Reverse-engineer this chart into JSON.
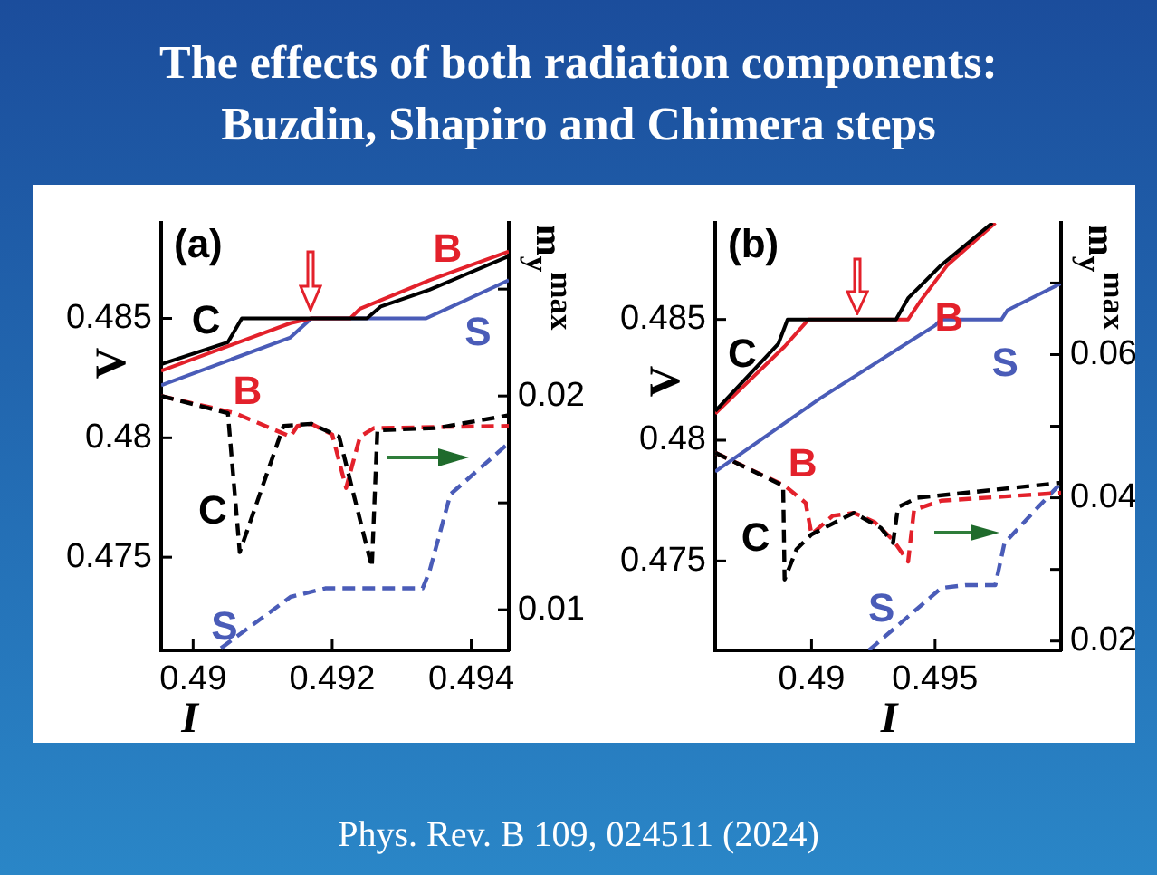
{
  "chart_data": [
    {
      "type": "line",
      "title": "The effects of both radiation components: Buzdin, Shapiro and Chimera steps",
      "xlabel": "I",
      "ylabel": "V",
      "y2label": "m$_{y}$$^{max}$",
      "annotations": [
        "(a)",
        "Phys. Rev. B 109, 024511 (2024)"
      ],
      "xlim": [
        0.48954,
        0.49454
      ],
      "ylim": [
        0.4711,
        0.489
      ],
      "y2lim": [
        0.0081,
        0.0281
      ],
      "xticks": [
        0.49,
        0.492,
        0.494
      ],
      "yticks": [
        0.475,
        0.48,
        0.485
      ],
      "y2ticks": [
        0.01,
        {
          "value": 0.015,
          "label": null
        },
        0.02,
        {
          "value": 0.025,
          "label": null
        }
      ],
      "grid": false,
      "legend": false,
      "marker": "none",
      "line_style": "solid",
      "series": [
        {
          "name": "C",
          "color": "#000000",
          "x": [
            0.48954,
            0.4905,
            0.4907,
            0.4925,
            0.4927,
            0.4934,
            0.49454
          ],
          "values": [
            0.48308,
            0.484,
            0.485,
            0.485,
            0.4855,
            0.4862,
            0.4876
          ]
        },
        {
          "name": "B",
          "color": "#e3212b",
          "x": [
            0.48954,
            0.4914,
            0.4917,
            0.49226,
            0.4924,
            0.4934,
            0.49454
          ],
          "values": [
            0.4828,
            0.4848,
            0.485,
            0.485,
            0.4854,
            0.4866,
            0.4878
          ]
        },
        {
          "name": "S",
          "color": "#4a5cb8",
          "x": [
            0.48954,
            0.4914,
            0.4917,
            0.49335,
            0.4938,
            0.49454
          ],
          "values": [
            0.4822,
            0.4842,
            0.485,
            0.485,
            0.4856,
            0.4866
          ]
        },
        {
          "name": "C",
          "color": "#000000",
          "axis": "y2",
          "line_style": "dashed",
          "x": [
            0.48954,
            0.4905,
            0.49067,
            0.4913,
            0.4917,
            0.4921,
            0.49257,
            0.49265,
            0.4935,
            0.49454
          ],
          "values": [
            0.02,
            0.0192,
            0.0127,
            0.0186,
            0.0187,
            0.0181,
            0.012,
            0.0184,
            0.0185,
            0.0191
          ]
        },
        {
          "name": "B",
          "color": "#e3212b",
          "axis": "y2",
          "line_style": "dashed",
          "x": [
            0.48954,
            0.4906,
            0.4914,
            0.4915,
            0.4917,
            0.492,
            0.4922,
            0.4924,
            0.4926,
            0.49454
          ],
          "values": [
            0.02,
            0.0192,
            0.0181,
            0.0186,
            0.0187,
            0.0182,
            0.0157,
            0.0181,
            0.0185,
            0.0186
          ]
        },
        {
          "name": "S",
          "color": "#4a5cb8",
          "axis": "y2",
          "line_style": "dashed",
          "x": [
            0.4904,
            0.4914,
            0.4919,
            0.4933,
            0.4934,
            0.4937,
            0.49454
          ],
          "values": [
            0.0082,
            0.0106,
            0.011,
            0.011,
            0.0118,
            0.0154,
            0.0178
          ]
        }
      ]
    },
    {
      "type": "line",
      "xlabel": "I",
      "ylabel": "V",
      "y2label": "m$_{y}$$^{max}$",
      "annotations": [
        "(b)"
      ],
      "xlim": [
        0.4861,
        0.5001
      ],
      "ylim": [
        0.4713,
        0.489
      ],
      "y2lim": [
        0.0187,
        0.0784
      ],
      "xticks": [
        0.49,
        0.495
      ],
      "yticks": [
        0.475,
        0.48,
        0.485
      ],
      "y2ticks": [
        0.02,
        {
          "value": 0.03,
          "label": null
        },
        0.04,
        {
          "value": 0.05,
          "label": null
        },
        0.06,
        {
          "value": 0.07,
          "label": null
        }
      ],
      "grid": false,
      "legend": false,
      "marker": "none",
      "line_style": "solid",
      "series": [
        {
          "name": "C",
          "color": "#000000",
          "x": [
            0.4861,
            0.48866,
            0.48903,
            0.48988,
            0.49342,
            0.49391,
            0.49525,
            0.49732
          ],
          "values": [
            0.4812,
            0.484,
            0.485,
            0.485,
            0.485,
            0.48588,
            0.48725,
            0.489
          ]
        },
        {
          "name": "B",
          "color": "#e3212b",
          "x": [
            0.4861,
            0.48891,
            0.48988,
            0.49391,
            0.4944,
            0.4955,
            0.49744
          ],
          "values": [
            0.4811,
            0.48388,
            0.485,
            0.485,
            0.48575,
            0.48725,
            0.489
          ]
        },
        {
          "name": "S",
          "color": "#4a5cb8",
          "x": [
            0.4861,
            0.49037,
            0.495,
            0.49525,
            0.49769,
            0.49793,
            0.5001
          ],
          "values": [
            0.4787,
            0.48175,
            0.48475,
            0.485,
            0.485,
            0.48538,
            0.4865
          ]
        },
        {
          "name": "C",
          "color": "#000000",
          "axis": "y2",
          "line_style": "dashed",
          "x": [
            0.4861,
            0.48885,
            0.48891,
            0.48939,
            0.49,
            0.49171,
            0.49281,
            0.4933,
            0.4935,
            0.49427,
            0.5001
          ],
          "values": [
            0.0463,
            0.0417,
            0.0286,
            0.0328,
            0.0349,
            0.0379,
            0.0358,
            0.0337,
            0.0387,
            0.04,
            0.0421
          ]
        },
        {
          "name": "B",
          "color": "#e3212b",
          "axis": "y2",
          "line_style": "dashed",
          "x": [
            0.4861,
            0.48891,
            0.48976,
            0.48988,
            0.49,
            0.49086,
            0.49171,
            0.49256,
            0.4933,
            0.49391,
            0.49415,
            0.49525,
            0.5001
          ],
          "values": [
            0.0463,
            0.0417,
            0.0393,
            0.0371,
            0.0349,
            0.0375,
            0.0379,
            0.0366,
            0.0341,
            0.0311,
            0.0383,
            0.0396,
            0.0407
          ]
        },
        {
          "name": "S",
          "color": "#4a5cb8",
          "axis": "y2",
          "line_style": "dashed",
          "x": [
            0.49232,
            0.49525,
            0.49622,
            0.49744,
            0.49781,
            0.5001
          ],
          "values": [
            0.0187,
            0.0274,
            0.0278,
            0.0278,
            0.0337,
            0.0421
          ]
        }
      ]
    }
  ]
}
